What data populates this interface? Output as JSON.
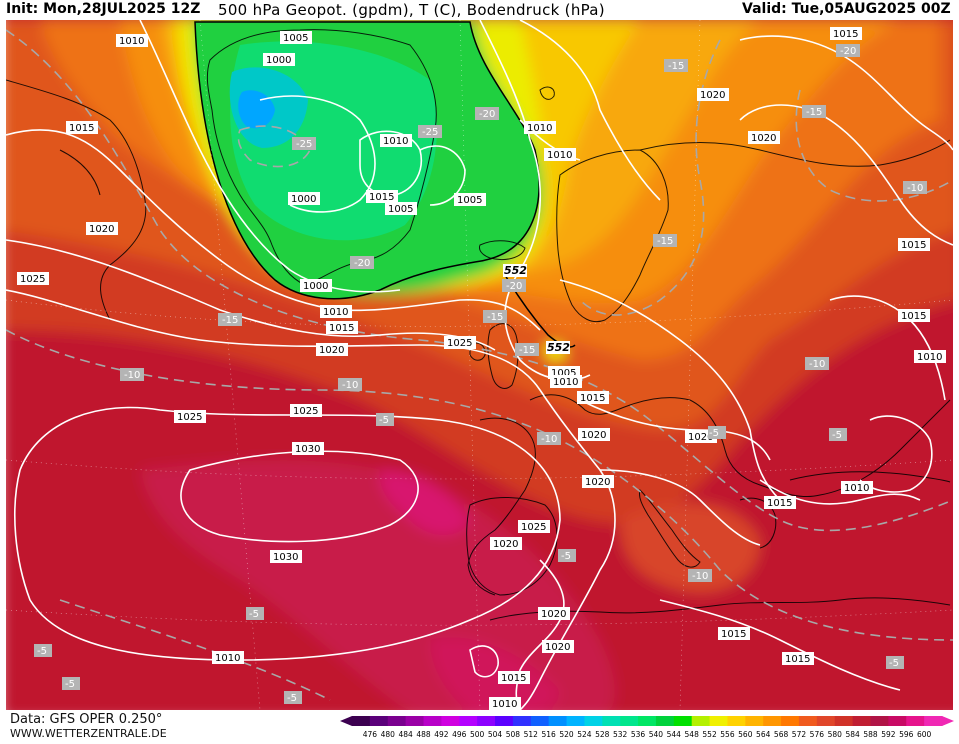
{
  "header": {
    "init": "Init: Mon,28JUL2025 12Z",
    "title": "500 hPa Geopot. (gpdm), T (C), Bodendruck (hPa)",
    "valid": "Valid: Tue,05AUG2025 00Z"
  },
  "footer": {
    "source": "Data: GFS OPER 0.250°",
    "site": "WWW.WETTERZENTRALE.DE"
  },
  "legend": {
    "ticks": [
      "476",
      "480",
      "484",
      "488",
      "492",
      "496",
      "500",
      "504",
      "508",
      "512",
      "516",
      "520",
      "524",
      "528",
      "532",
      "536",
      "540",
      "544",
      "548",
      "552",
      "556",
      "560",
      "564",
      "568",
      "572",
      "576",
      "580",
      "584",
      "588",
      "592",
      "596",
      "600"
    ],
    "colors": [
      "#3c0050",
      "#5a007a",
      "#7a008f",
      "#9a00a6",
      "#b800c8",
      "#d000e0",
      "#b400ff",
      "#8c00ff",
      "#5a00ff",
      "#3030ff",
      "#1060ff",
      "#0090ff",
      "#00b4ff",
      "#00d2e6",
      "#00e0b4",
      "#00e68c",
      "#00e664",
      "#00d23c",
      "#00e000",
      "#b4f000",
      "#f0f000",
      "#ffd200",
      "#ffb400",
      "#ff9600",
      "#ff7800",
      "#f05a1e",
      "#e0462a",
      "#d03228",
      "#c01e32",
      "#b01446",
      "#c80a64",
      "#e6148c",
      "#f028b4"
    ]
  },
  "map": {
    "pressure_labels": [
      {
        "id": "p1",
        "t": "1010"
      },
      {
        "id": "p2",
        "t": "1005"
      },
      {
        "id": "p3",
        "t": "1000"
      },
      {
        "id": "p4",
        "t": "1015"
      },
      {
        "id": "p5",
        "t": "1020"
      },
      {
        "id": "p6",
        "t": "1025"
      },
      {
        "id": "p7",
        "t": "1010"
      },
      {
        "id": "p8",
        "t": "1010"
      },
      {
        "id": "p9",
        "t": "1010"
      },
      {
        "id": "p10",
        "t": "1015"
      },
      {
        "id": "p11",
        "t": "1005"
      },
      {
        "id": "p12",
        "t": "1005"
      },
      {
        "id": "p13",
        "t": "1000"
      },
      {
        "id": "p14",
        "t": "1000"
      },
      {
        "id": "p15",
        "t": "1010"
      },
      {
        "id": "p16",
        "t": "1015"
      },
      {
        "id": "p17",
        "t": "1020"
      },
      {
        "id": "p18",
        "t": "1025"
      },
      {
        "id": "p19",
        "t": "1025"
      },
      {
        "id": "p20",
        "t": "1030"
      },
      {
        "id": "p21",
        "t": "1030"
      },
      {
        "id": "p22",
        "t": "1025"
      },
      {
        "id": "p23",
        "t": "1005"
      },
      {
        "id": "p24",
        "t": "1010"
      },
      {
        "id": "p25",
        "t": "1015"
      },
      {
        "id": "p26",
        "t": "1020"
      },
      {
        "id": "p27",
        "t": "1020"
      },
      {
        "id": "p28",
        "t": "1025"
      },
      {
        "id": "p29",
        "t": "1020"
      },
      {
        "id": "p30",
        "t": "1020"
      },
      {
        "id": "p31",
        "t": "1020"
      },
      {
        "id": "p32",
        "t": "1015"
      },
      {
        "id": "p33",
        "t": "1015"
      },
      {
        "id": "p34",
        "t": "1010"
      },
      {
        "id": "p35",
        "t": "1020"
      },
      {
        "id": "p36",
        "t": "1020"
      },
      {
        "id": "p37",
        "t": "1020"
      },
      {
        "id": "p38",
        "t": "1015"
      },
      {
        "id": "p39",
        "t": "1015"
      },
      {
        "id": "p40",
        "t": "1010"
      },
      {
        "id": "p41",
        "t": "1010"
      },
      {
        "id": "p42",
        "t": "1015"
      },
      {
        "id": "p43",
        "t": "1015"
      },
      {
        "id": "p44",
        "t": "1015"
      },
      {
        "id": "p45",
        "t": "1010"
      },
      {
        "id": "p46",
        "t": "1020"
      },
      {
        "id": "p47",
        "t": "1025"
      }
    ],
    "temp_labels": [
      {
        "id": "t1",
        "t": "-25"
      },
      {
        "id": "t2",
        "t": "-25"
      },
      {
        "id": "t3",
        "t": "-20"
      },
      {
        "id": "t4",
        "t": "-20"
      },
      {
        "id": "t5",
        "t": "-20"
      },
      {
        "id": "t6",
        "t": "-15"
      },
      {
        "id": "t7",
        "t": "-15"
      },
      {
        "id": "t8",
        "t": "-15"
      },
      {
        "id": "t9",
        "t": "-15"
      },
      {
        "id": "t10",
        "t": "-15"
      },
      {
        "id": "t11",
        "t": "-10"
      },
      {
        "id": "t12",
        "t": "-10"
      },
      {
        "id": "t13",
        "t": "-10"
      },
      {
        "id": "t14",
        "t": "-10"
      },
      {
        "id": "t15",
        "t": "-10"
      },
      {
        "id": "t16",
        "t": "-5"
      },
      {
        "id": "t17",
        "t": "-5"
      },
      {
        "id": "t18",
        "t": "-5"
      },
      {
        "id": "t19",
        "t": "-5"
      },
      {
        "id": "t20",
        "t": "-5"
      },
      {
        "id": "t21",
        "t": "-5"
      },
      {
        "id": "t22",
        "t": "-5"
      },
      {
        "id": "t23",
        "t": "-5"
      },
      {
        "id": "t24",
        "t": "-15"
      },
      {
        "id": "t25",
        "t": "-20"
      },
      {
        "id": "t26",
        "t": "-15"
      },
      {
        "id": "t27",
        "t": "-10"
      },
      {
        "id": "t28",
        "t": "-10"
      },
      {
        "id": "t29",
        "t": "-5"
      }
    ],
    "geopot_labels": [
      {
        "id": "g1",
        "t": "552"
      },
      {
        "id": "g2",
        "t": "552"
      }
    ]
  }
}
